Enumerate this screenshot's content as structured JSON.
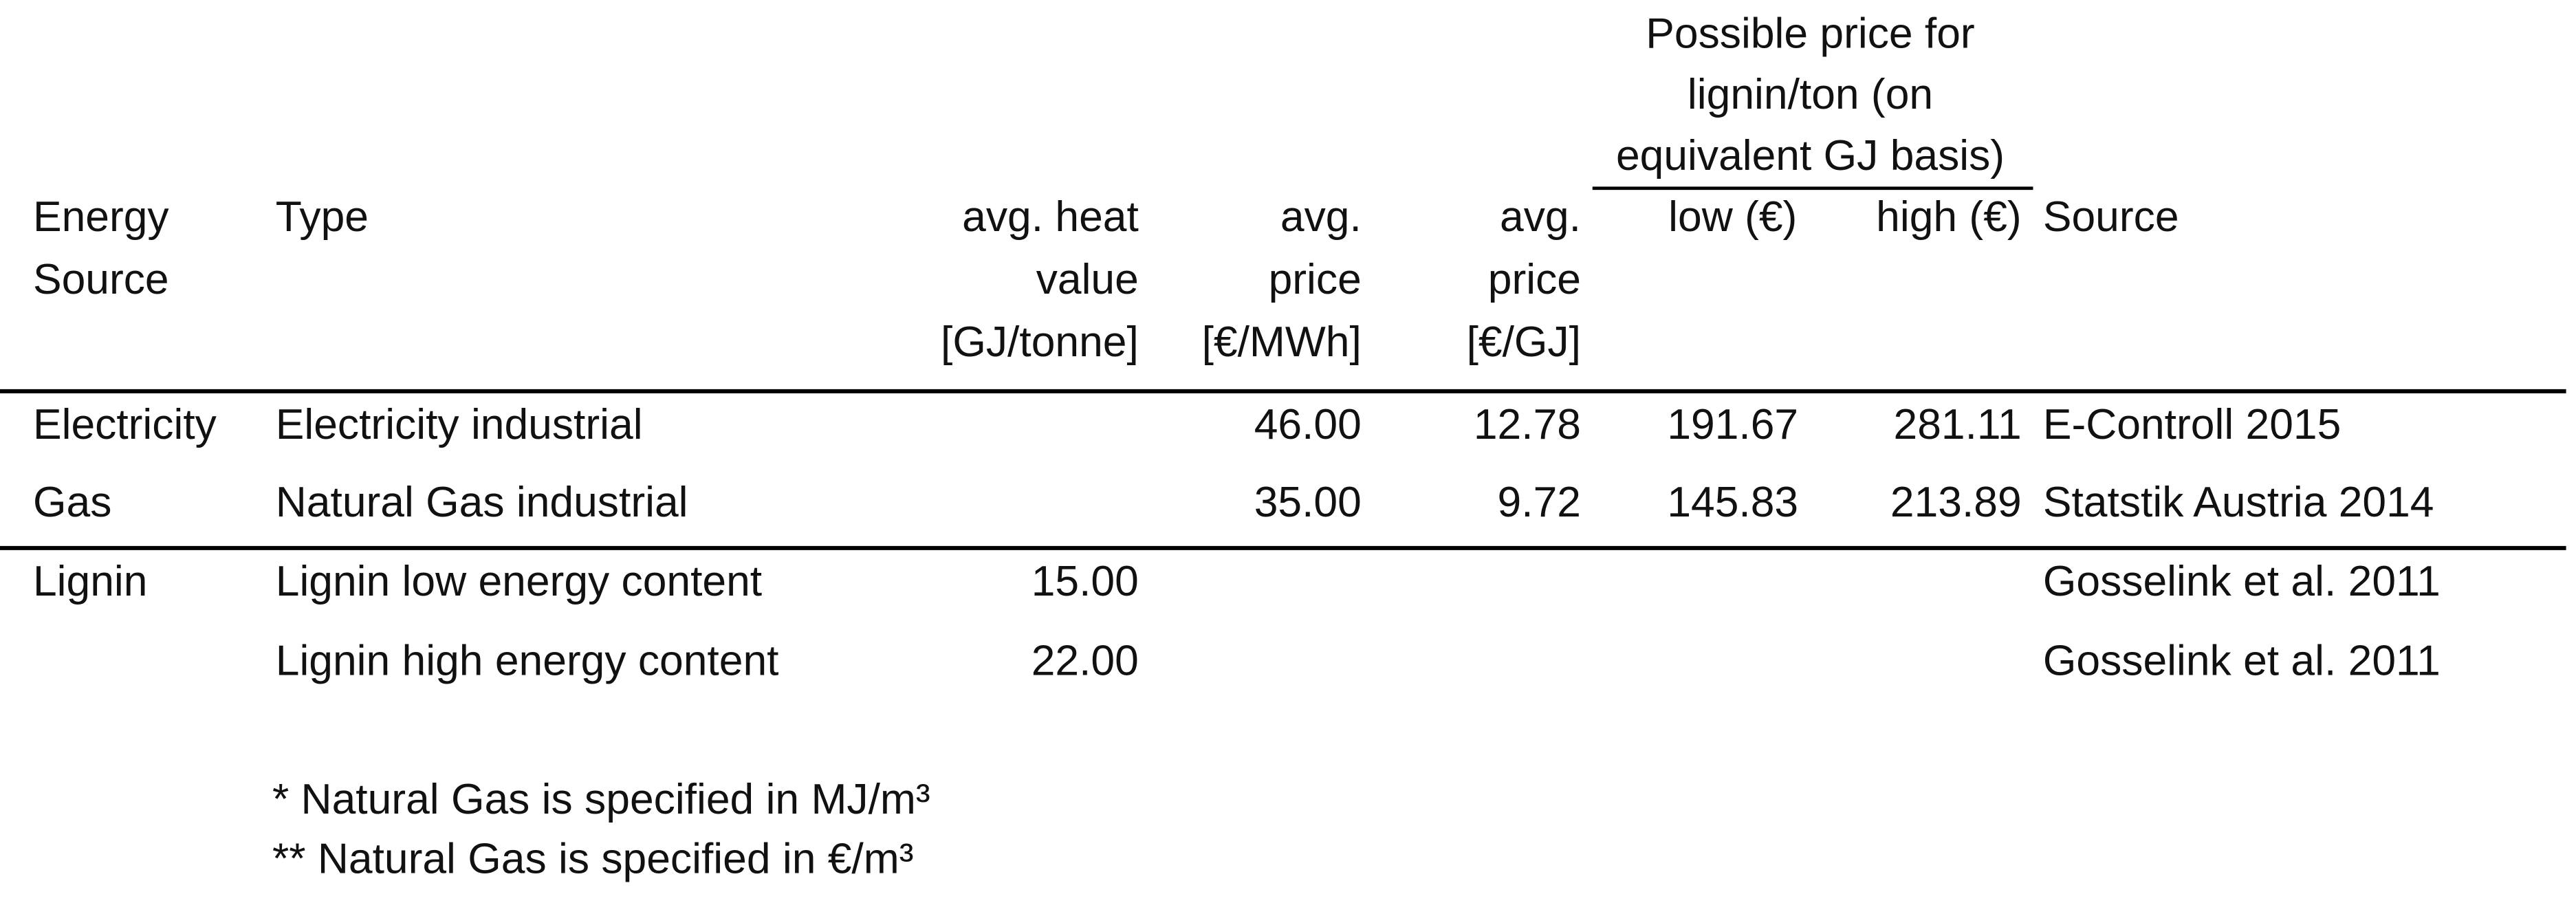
{
  "table": {
    "group_header": [
      "Possible price for",
      "lignin/ton (on",
      "equivalent GJ basis)"
    ],
    "headers": [
      [
        "Energy",
        "Source"
      ],
      [
        "Type"
      ],
      [
        "avg. heat",
        "value",
        "[GJ/tonne]"
      ],
      [
        "avg.",
        "price",
        "[€/MWh]"
      ],
      [
        "avg.",
        "price",
        "[€/GJ]"
      ],
      [
        "low (€)"
      ],
      [
        "high (€)"
      ],
      [
        "Source"
      ]
    ],
    "rows": [
      [
        "Electricity",
        "Electricity industrial",
        null,
        "46.00",
        "12.78",
        "191.67",
        "281.11",
        "E-Controll 2015"
      ],
      [
        "Gas",
        "Natural Gas industrial",
        null,
        "35.00",
        "9.72",
        "145.83",
        "213.89",
        "Statstik Austria 2014"
      ],
      [
        "Lignin",
        "Lignin low energy content",
        "15.00",
        null,
        null,
        null,
        null,
        "Gosselink et al. 2011"
      ],
      [
        null,
        "Lignin high energy content",
        "22.00",
        null,
        null,
        null,
        null,
        "Gosselink et al. 2011"
      ]
    ]
  },
  "notes": [
    "* Natural Gas is specified in MJ/m³",
    "** Natural Gas is specified in €/m³"
  ]
}
